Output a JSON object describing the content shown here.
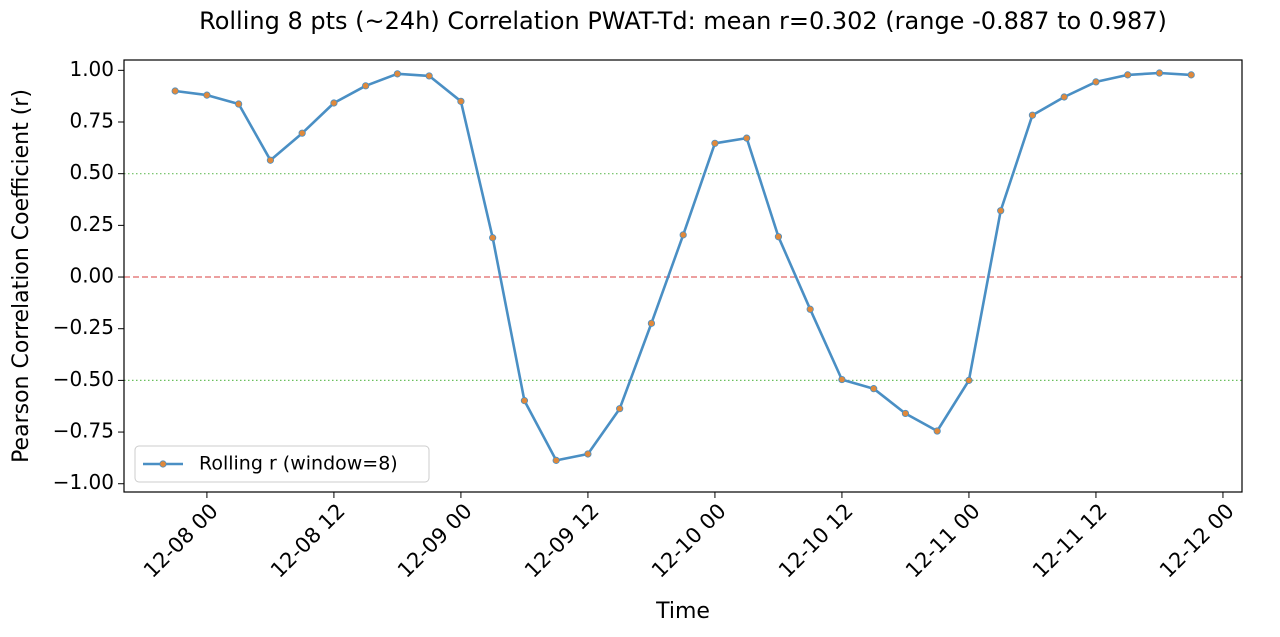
{
  "chart_data": {
    "type": "line",
    "title": "Rolling 8 pts (~24h) Correlation PWAT-Td: mean r=0.302 (range -0.887 to 0.987)",
    "x_label": "Time",
    "y_label": "Pearson Correlation Coefficient (r)",
    "x": [
      "12-07 21:00",
      "12-08 00:00",
      "12-08 03:00",
      "12-08 06:00",
      "12-08 09:00",
      "12-08 12:00",
      "12-08 15:00",
      "12-08 18:00",
      "12-08 21:00",
      "12-09 00:00",
      "12-09 03:00",
      "12-09 06:00",
      "12-09 09:00",
      "12-09 12:00",
      "12-09 15:00",
      "12-09 18:00",
      "12-09 21:00",
      "12-10 00:00",
      "12-10 03:00",
      "12-10 06:00",
      "12-10 09:00",
      "12-10 12:00",
      "12-10 15:00",
      "12-10 18:00",
      "12-10 21:00",
      "12-11 00:00",
      "12-11 03:00",
      "12-11 06:00",
      "12-11 09:00",
      "12-11 12:00",
      "12-11 15:00",
      "12-11 18:00",
      "12-11 21:00"
    ],
    "series": [
      {
        "name": "Rolling r (window=8)",
        "color": "#4a8fc4",
        "marker_color": "#e0893b",
        "values": [
          0.9,
          0.88,
          0.837,
          0.565,
          0.696,
          0.842,
          0.925,
          0.983,
          0.973,
          0.85,
          0.19,
          -0.598,
          -0.887,
          -0.856,
          -0.637,
          -0.224,
          0.204,
          0.647,
          0.672,
          0.195,
          -0.156,
          -0.496,
          -0.54,
          -0.66,
          -0.745,
          -0.5,
          0.321,
          0.783,
          0.871,
          0.944,
          0.978,
          0.987,
          0.978
        ]
      }
    ],
    "xlim": [
      "12-07 16:10",
      "12-12 01:48"
    ],
    "xticks": [
      "12-08 00",
      "12-08 12",
      "12-09 00",
      "12-09 12",
      "12-10 00",
      "12-10 12",
      "12-11 00",
      "12-11 12",
      "12-12 00"
    ],
    "ylim": [
      -1.04,
      1.05
    ],
    "yticks": [
      {
        "value": 1,
        "label": "1.00"
      },
      {
        "value": 0.75,
        "label": "0.75"
      },
      {
        "value": 0.5,
        "label": "0.50"
      },
      {
        "value": 0.25,
        "label": "0.25"
      },
      {
        "value": 0,
        "label": "0.00"
      },
      {
        "value": -0.25,
        "label": "−0.25"
      },
      {
        "value": -0.5,
        "label": "−0.50"
      },
      {
        "value": -0.75,
        "label": "−0.75"
      },
      {
        "value": -1,
        "label": "−1.00"
      }
    ],
    "reference_lines": [
      {
        "value": 0,
        "color": "#e06666",
        "style": "dashed"
      },
      {
        "value": 0.5,
        "color": "#6abf5e",
        "style": "dotted"
      },
      {
        "value": -0.5,
        "color": "#6abf5e",
        "style": "dotted"
      }
    ],
    "legend_position": "lower left"
  }
}
